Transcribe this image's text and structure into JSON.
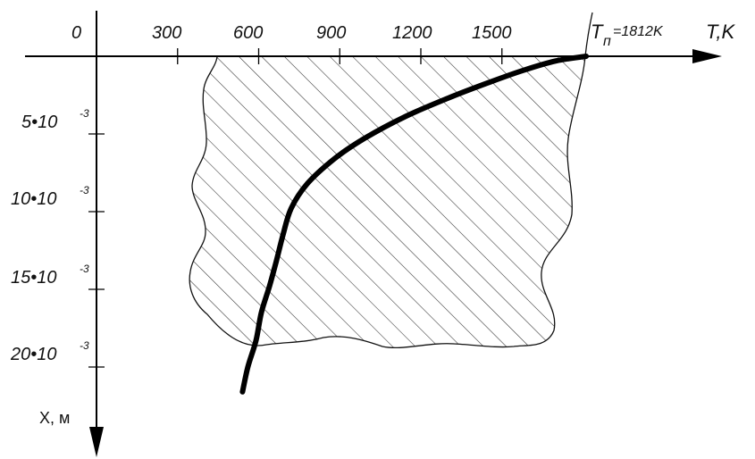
{
  "chart_data": {
    "type": "line",
    "origin_label": "0",
    "x_axis": {
      "label": "T,K",
      "ticks": [
        300,
        600,
        900,
        1200,
        1500
      ],
      "tick_labels": [
        "300",
        "600",
        "900",
        "1200",
        "1500"
      ],
      "range": [
        0,
        1812
      ]
    },
    "y_axis": {
      "label": "X, м",
      "direction": "downward",
      "ticks": [
        0.005,
        0.01,
        0.015,
        0.02
      ],
      "tick_labels": [
        {
          "mantissa": "5•10",
          "exponent": "-3"
        },
        {
          "mantissa": "10•10",
          "exponent": "-3"
        },
        {
          "mantissa": "15•10",
          "exponent": "-3"
        },
        {
          "mantissa": "20•10",
          "exponent": "-3"
        }
      ],
      "range": [
        0,
        0.024
      ]
    },
    "annotation": {
      "main": "T",
      "subscript": "п",
      "rest": "=1812K"
    },
    "series": [
      {
        "x": [
          1812,
          1700,
          1580,
          1450,
          1300,
          1140,
          990,
          880,
          780,
          720,
          690,
          665,
          640,
          610,
          590,
          560,
          540
        ],
        "y": [
          0,
          0.0003,
          0.0009,
          0.0017,
          0.0027,
          0.0039,
          0.0053,
          0.0066,
          0.0082,
          0.0098,
          0.0115,
          0.0132,
          0.0148,
          0.0165,
          0.0183,
          0.02,
          0.0216
        ]
      }
    ],
    "shaded_region": "hatched irregular area beneath the surface",
    "grid": false,
    "colors": {
      "curve": "#000000",
      "hatch": "#333333",
      "axes": "#000000"
    }
  }
}
